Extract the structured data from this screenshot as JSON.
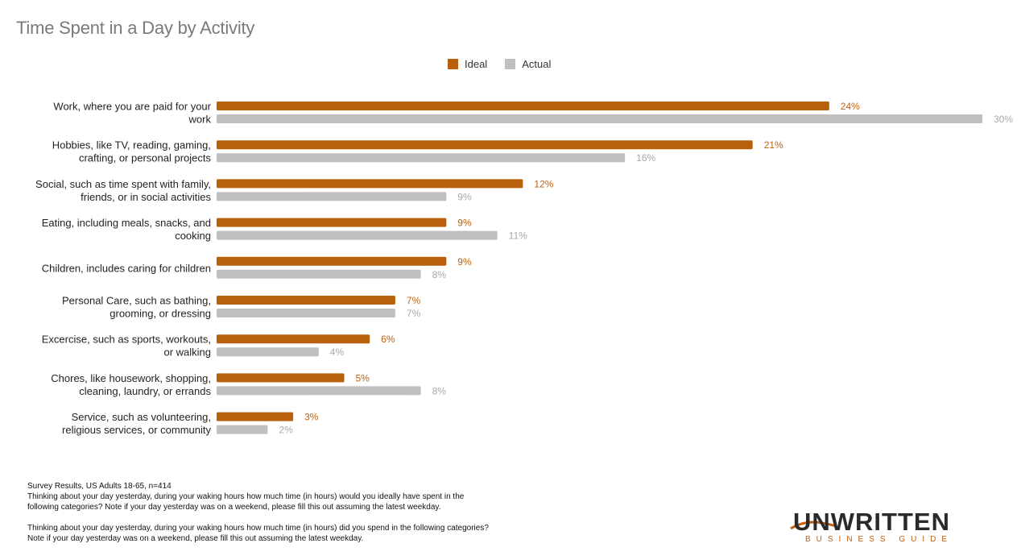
{
  "chart_data": {
    "type": "bar",
    "orientation": "horizontal",
    "title": "Time Spent in a Day by Activity",
    "categories": [
      [
        "Work, where you are paid for your",
        "work"
      ],
      [
        "Hobbies, like TV, reading, gaming,",
        "crafting, or personal projects"
      ],
      [
        "Social, such as time spent with family,",
        "friends, or in social activities"
      ],
      [
        "Eating, including meals, snacks, and",
        "cooking"
      ],
      [
        "Children, includes caring for children"
      ],
      [
        "Personal Care, such as bathing,",
        "grooming, or dressing"
      ],
      [
        "Excercise, such as sports, workouts,",
        "or walking"
      ],
      [
        "Chores, like housework, shopping,",
        "cleaning, laundry, or errands"
      ],
      [
        "Service, such as volunteering,",
        "religious services, or community"
      ]
    ],
    "series": [
      {
        "name": "Ideal",
        "color": "#b8600b",
        "label_color": "#c0620e",
        "values": [
          24,
          21,
          12,
          9,
          9,
          7,
          6,
          5,
          3
        ],
        "labels": [
          "24%",
          "21%",
          "12%",
          "9%",
          "9%",
          "7%",
          "6%",
          "5%",
          "3%"
        ]
      },
      {
        "name": "Actual",
        "color": "#bfbfbf",
        "label_color": "#a8a8a8",
        "values": [
          30,
          16,
          9,
          11,
          8,
          7,
          4,
          8,
          2
        ],
        "labels": [
          "30%",
          "16%",
          "9%",
          "11%",
          "8%",
          "7%",
          "4%",
          "8%",
          "2%"
        ]
      }
    ],
    "legend_position": "top-center",
    "grid": false
  },
  "notes": {
    "line1": "Survey Results, US Adults 18-65, n=414",
    "line2": "Thinking about your day yesterday, during your waking hours how much time (in hours) would you ideally have spent in the following categories? Note if your day yesterday was on a weekend, please fill this out assuming the latest weekday.",
    "line3": "Thinking about your day yesterday, during your waking hours how much time (in hours) did you spend in the following categories? Note if your day yesterday was on a weekend, please fill this out assuming the latest weekday."
  },
  "logo": {
    "main": "UNWRITTEN",
    "sub": "BUSINESS GUIDE"
  }
}
